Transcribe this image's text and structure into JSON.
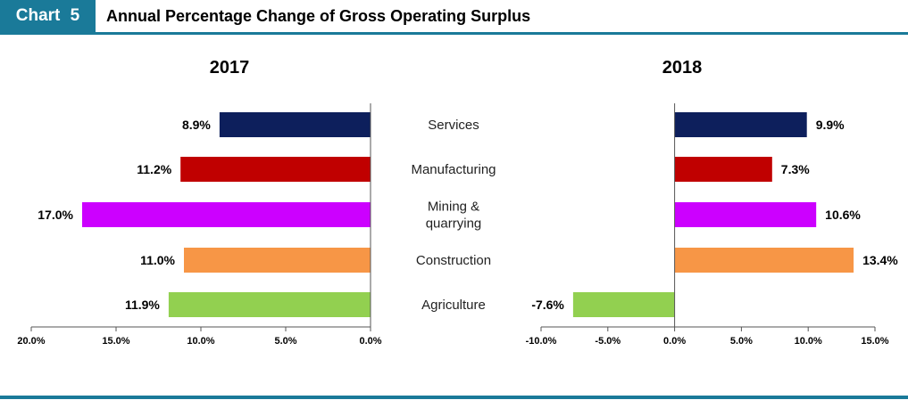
{
  "header": {
    "tag": "Chart  5",
    "title": "Annual Percentage Change of Gross Operating Surplus"
  },
  "colors": {
    "accent": "#1a7a99",
    "Services": "#0d1f5c",
    "Manufacturing": "#c00000",
    "Mining & quarrying": "#cc00ff",
    "Construction": "#f79646",
    "Agriculture": "#92d050"
  },
  "chart_data": [
    {
      "type": "bar",
      "orientation": "horizontal",
      "title": "2017",
      "categories": [
        "Services",
        "Manufacturing",
        "Mining & quarrying",
        "Construction",
        "Agriculture"
      ],
      "values": [
        8.9,
        11.2,
        17.0,
        11.0,
        11.9
      ],
      "value_labels": [
        "8.9%",
        "11.2%",
        "17.0%",
        "11.0%",
        "11.9%"
      ],
      "xlim": [
        20.0,
        0.0
      ],
      "x_reversed": true,
      "ticks": [
        20,
        15,
        10,
        5,
        0
      ],
      "tick_labels": [
        "20.0%",
        "15.0%",
        "10.0%",
        "5.0%",
        "0.0%"
      ],
      "grid": false,
      "legend": "none"
    },
    {
      "type": "bar",
      "orientation": "horizontal",
      "title": "2018",
      "categories": [
        "Services",
        "Manufacturing",
        "Mining & quarrying",
        "Construction",
        "Agriculture"
      ],
      "values": [
        9.9,
        7.3,
        10.6,
        13.4,
        -7.6
      ],
      "value_labels": [
        "9.9%",
        "7.3%",
        "10.6%",
        "13.4%",
        "-7.6%"
      ],
      "xlim": [
        -10.0,
        15.0
      ],
      "x_reversed": false,
      "ticks": [
        -10,
        -5,
        0,
        5,
        10,
        15
      ],
      "tick_labels": [
        "-10.0%",
        "-5.0%",
        "0.0%",
        "5.0%",
        "10.0%",
        "15.0%"
      ],
      "grid": false,
      "legend": "none"
    }
  ],
  "category_labels": [
    [
      "Services"
    ],
    [
      "Manufacturing"
    ],
    [
      "Mining &",
      "quarrying"
    ],
    [
      "Construction"
    ],
    [
      "Agriculture"
    ]
  ]
}
